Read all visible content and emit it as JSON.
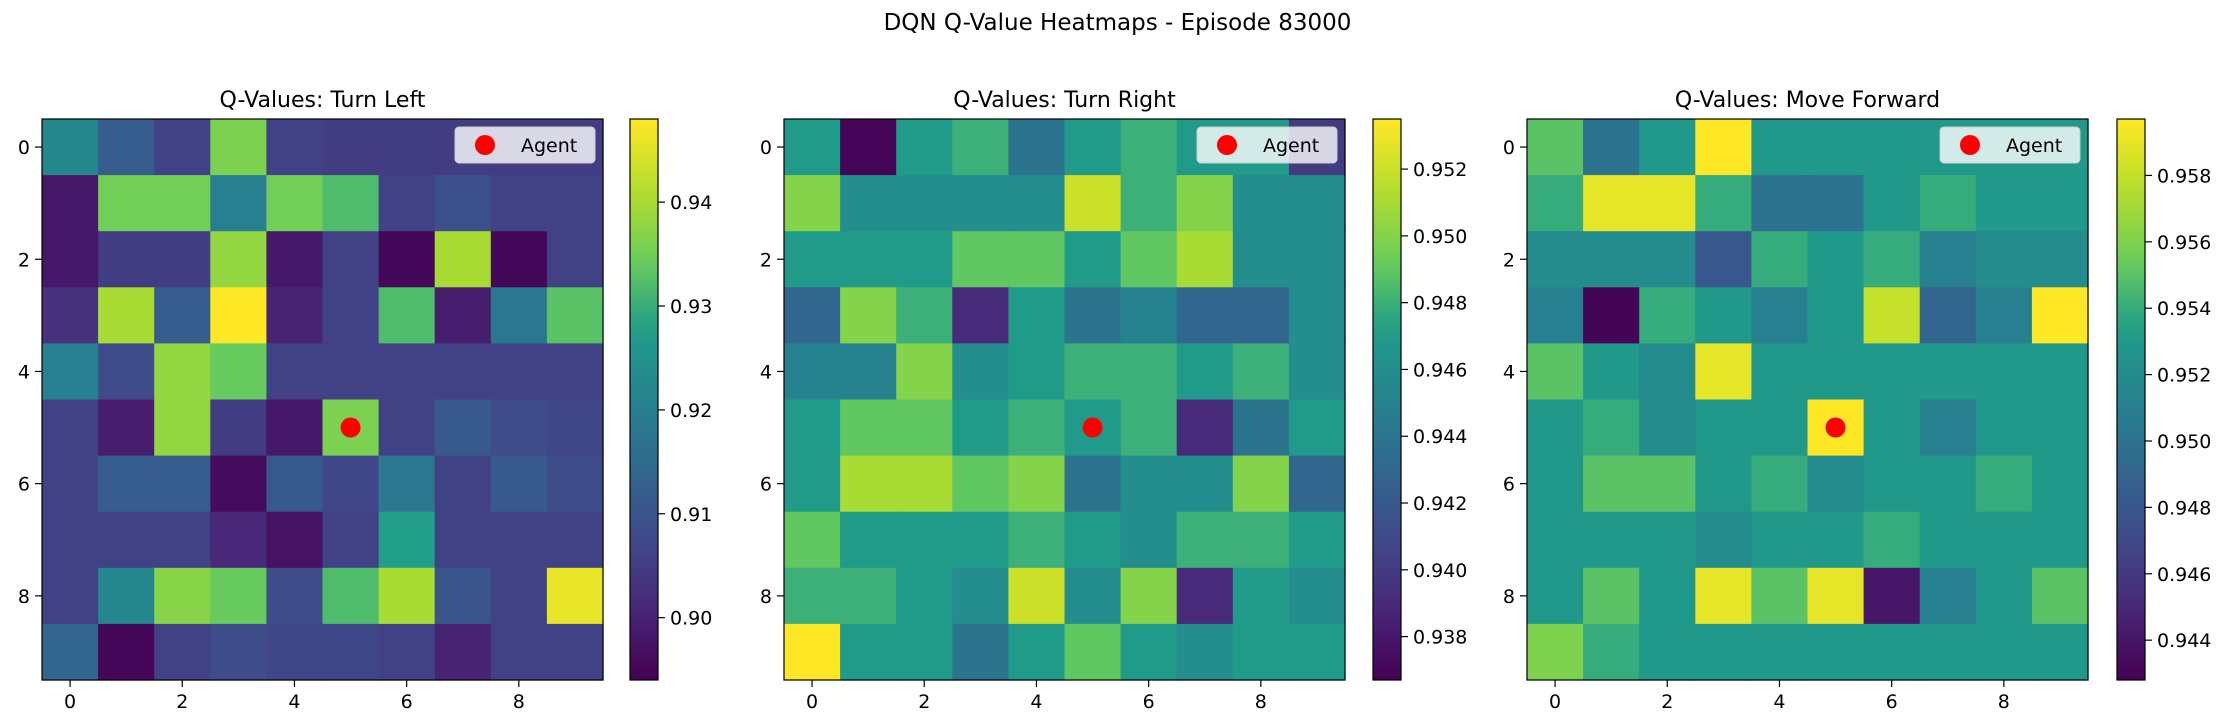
{
  "suptitle": "DQN Q-Value Heatmaps - Episode 83000",
  "colormap": [
    "#440154",
    "#482777",
    "#3f4a8a",
    "#31678e",
    "#26838f",
    "#1f9d8a",
    "#6cce5a",
    "#b6de2b",
    "#fee825"
  ],
  "agent_color": "#ff0000",
  "chart_data": [
    {
      "type": "heatmap",
      "title": "Q-Values: Turn Left",
      "x_ticks": [
        0,
        2,
        4,
        6,
        8
      ],
      "y_ticks": [
        0,
        2,
        4,
        6,
        8
      ],
      "vmin": 0.894,
      "vmax": 0.948,
      "colorbar_ticks": [
        0.9,
        0.91,
        0.92,
        0.93,
        0.94
      ],
      "colorbar_labels": [
        "0.90",
        "0.91",
        "0.92",
        "0.93",
        "0.94"
      ],
      "legend": "Agent",
      "legend_position": "upper-right",
      "agent": {
        "x": 5,
        "y": 5
      },
      "values": [
        [
          0.922,
          0.912,
          0.906,
          0.936,
          0.906,
          0.905,
          0.905,
          0.905,
          0.905,
          0.905
        ],
        [
          0.898,
          0.935,
          0.935,
          0.92,
          0.935,
          0.932,
          0.906,
          0.909,
          0.906,
          0.906
        ],
        [
          0.898,
          0.905,
          0.905,
          0.938,
          0.898,
          0.906,
          0.895,
          0.94,
          0.895,
          0.906
        ],
        [
          0.903,
          0.94,
          0.912,
          0.948,
          0.9,
          0.906,
          0.932,
          0.899,
          0.918,
          0.933
        ],
        [
          0.92,
          0.908,
          0.938,
          0.934,
          0.906,
          0.906,
          0.906,
          0.906,
          0.906,
          0.906
        ],
        [
          0.906,
          0.899,
          0.938,
          0.905,
          0.898,
          0.936,
          0.906,
          0.911,
          0.908,
          0.907
        ],
        [
          0.906,
          0.912,
          0.912,
          0.896,
          0.911,
          0.907,
          0.918,
          0.906,
          0.911,
          0.908
        ],
        [
          0.906,
          0.906,
          0.906,
          0.901,
          0.897,
          0.906,
          0.928,
          0.906,
          0.906,
          0.906
        ],
        [
          0.906,
          0.922,
          0.937,
          0.934,
          0.908,
          0.932,
          0.94,
          0.91,
          0.906,
          0.946
        ],
        [
          0.914,
          0.895,
          0.906,
          0.908,
          0.907,
          0.907,
          0.906,
          0.9,
          0.906,
          0.906
        ]
      ]
    },
    {
      "type": "heatmap",
      "title": "Q-Values: Turn Right",
      "x_ticks": [
        0,
        2,
        4,
        6,
        8
      ],
      "y_ticks": [
        0,
        2,
        4,
        6,
        8
      ],
      "vmin": 0.9367,
      "vmax": 0.9535,
      "colorbar_ticks": [
        0.938,
        0.94,
        0.942,
        0.944,
        0.946,
        0.948,
        0.95,
        0.952
      ],
      "colorbar_labels": [
        "0.938",
        "0.940",
        "0.942",
        "0.944",
        "0.946",
        "0.948",
        "0.950",
        "0.952"
      ],
      "legend": "Agent",
      "legend_position": "upper-right",
      "agent": {
        "x": 5,
        "y": 5
      },
      "values": [
        [
          0.947,
          0.937,
          0.947,
          0.948,
          0.944,
          0.947,
          0.948,
          0.947,
          0.947,
          0.94
        ],
        [
          0.95,
          0.946,
          0.946,
          0.946,
          0.946,
          0.952,
          0.948,
          0.95,
          0.946,
          0.946
        ],
        [
          0.947,
          0.947,
          0.947,
          0.949,
          0.949,
          0.947,
          0.949,
          0.951,
          0.946,
          0.946
        ],
        [
          0.943,
          0.95,
          0.948,
          0.939,
          0.947,
          0.944,
          0.945,
          0.943,
          0.943,
          0.946
        ],
        [
          0.945,
          0.945,
          0.95,
          0.946,
          0.947,
          0.948,
          0.948,
          0.947,
          0.948,
          0.946
        ],
        [
          0.947,
          0.949,
          0.949,
          0.947,
          0.948,
          0.947,
          0.948,
          0.939,
          0.944,
          0.947
        ],
        [
          0.947,
          0.951,
          0.951,
          0.949,
          0.95,
          0.944,
          0.946,
          0.946,
          0.95,
          0.943
        ],
        [
          0.949,
          0.947,
          0.947,
          0.947,
          0.948,
          0.947,
          0.946,
          0.948,
          0.948,
          0.947
        ],
        [
          0.948,
          0.948,
          0.947,
          0.946,
          0.952,
          0.946,
          0.95,
          0.939,
          0.947,
          0.946
        ],
        [
          0.9535,
          0.947,
          0.947,
          0.944,
          0.947,
          0.949,
          0.947,
          0.946,
          0.947,
          0.947
        ]
      ]
    },
    {
      "type": "heatmap",
      "title": "Q-Values: Move Forward",
      "x_ticks": [
        0,
        2,
        4,
        6,
        8
      ],
      "y_ticks": [
        0,
        2,
        4,
        6,
        8
      ],
      "vmin": 0.9428,
      "vmax": 0.9597,
      "colorbar_ticks": [
        0.944,
        0.946,
        0.948,
        0.95,
        0.952,
        0.954,
        0.956,
        0.958
      ],
      "colorbar_labels": [
        "0.944",
        "0.946",
        "0.948",
        "0.950",
        "0.952",
        "0.954",
        "0.956",
        "0.958"
      ],
      "legend": "Agent",
      "legend_position": "upper-right",
      "agent": {
        "x": 5,
        "y": 5
      },
      "values": [
        [
          0.955,
          0.95,
          0.953,
          0.9597,
          0.953,
          0.953,
          0.953,
          0.953,
          0.953,
          0.953
        ],
        [
          0.954,
          0.959,
          0.959,
          0.954,
          0.95,
          0.95,
          0.953,
          0.954,
          0.953,
          0.953
        ],
        [
          0.952,
          0.952,
          0.952,
          0.948,
          0.954,
          0.953,
          0.954,
          0.951,
          0.952,
          0.952
        ],
        [
          0.951,
          0.943,
          0.954,
          0.953,
          0.951,
          0.953,
          0.958,
          0.949,
          0.951,
          0.9597
        ],
        [
          0.955,
          0.953,
          0.952,
          0.959,
          0.953,
          0.953,
          0.953,
          0.953,
          0.953,
          0.953
        ],
        [
          0.953,
          0.954,
          0.952,
          0.953,
          0.953,
          0.9597,
          0.953,
          0.951,
          0.953,
          0.953
        ],
        [
          0.953,
          0.955,
          0.955,
          0.953,
          0.954,
          0.952,
          0.953,
          0.953,
          0.954,
          0.953
        ],
        [
          0.953,
          0.953,
          0.953,
          0.952,
          0.953,
          0.953,
          0.954,
          0.953,
          0.953,
          0.953
        ],
        [
          0.953,
          0.955,
          0.953,
          0.959,
          0.955,
          0.959,
          0.944,
          0.951,
          0.953,
          0.955
        ],
        [
          0.956,
          0.954,
          0.953,
          0.953,
          0.953,
          0.953,
          0.953,
          0.953,
          0.953,
          0.953
        ]
      ]
    }
  ]
}
